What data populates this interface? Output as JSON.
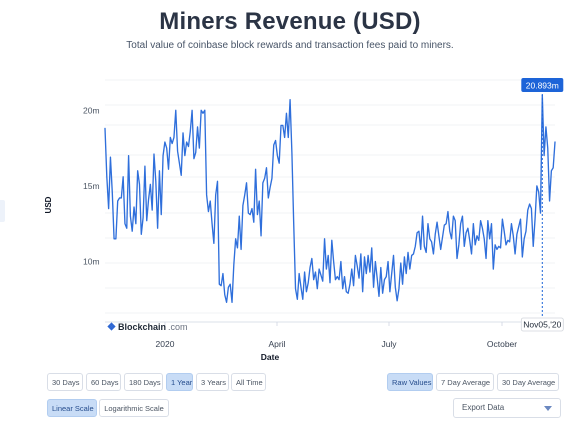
{
  "title": "Miners Revenue (USD)",
  "subtitle": "Total value of coinbase block rewards and transaction fees paid to miners.",
  "brand": {
    "name": "Blockchain",
    "domain": ".com"
  },
  "colors": {
    "line": "#2f6fdb",
    "grid": "#e5e7eb",
    "tooltip": "#1d64d8",
    "accent": "#c8dcf6"
  },
  "chart_data": {
    "type": "line",
    "ylabel": "USD",
    "xlabel": "Date",
    "yticks": [
      "10m",
      "15m",
      "20m"
    ],
    "xticks": [
      "2020",
      "April",
      "July",
      "October"
    ],
    "ylim": [
      6,
      22
    ],
    "crosshair": {
      "label": "20.893m",
      "date": "Nov05,'20"
    },
    "series": [
      {
        "values": [
          18.8,
          15.6,
          13.5,
          16.9,
          14.6,
          11.5,
          11.5,
          14.0,
          14.2,
          14.2,
          15.6,
          12.5,
          12.2,
          17.0,
          13.0,
          12.0,
          13.6,
          12.5,
          16.0,
          15.1,
          11.8,
          12.9,
          16.3,
          12.7,
          14.1,
          15.1,
          13.4,
          17.1,
          15.3,
          12.2,
          16.0,
          13.1,
          17.0,
          17.9,
          17.5,
          16.1,
          18.2,
          17.8,
          18.2,
          20.0,
          17.3,
          16.5,
          15.7,
          18.5,
          17.0,
          17.9,
          17.6,
          18.6,
          20.0,
          16.8,
          17.2,
          18.9,
          17.5,
          20.0,
          19.8,
          20.0,
          14.4,
          13.3,
          14.0,
          12.5,
          11.2,
          14.4,
          15.3,
          8.5,
          8.4,
          9.2,
          7.8,
          7.3,
          8.3,
          8.5,
          7.3,
          9.8,
          11.5,
          10.9,
          13.0,
          10.8,
          13.7,
          14.4,
          15.2,
          13.2,
          13.1,
          13.5,
          12.6,
          16.1,
          13.1,
          14.0,
          11.7,
          15.2,
          15.5,
          16.2,
          14.2,
          14.9,
          15.5,
          17.7,
          18.0,
          17.0,
          16.5,
          19.0,
          19.0,
          18.2,
          19.8,
          18.2,
          20.7,
          17.2,
          12.5,
          8.2,
          7.5,
          9.2,
          8.3,
          7.5,
          9.3,
          8.0,
          8.6,
          9.6,
          10.2,
          8.8,
          9.3,
          8.2,
          9.5,
          9.1,
          8.7,
          11.5,
          9.5,
          10.4,
          8.6,
          11.4,
          10.0,
          8.8,
          9.0,
          8.8,
          10.0,
          8.2,
          9.0,
          8.0,
          7.9,
          8.5,
          9.5,
          8.4,
          10.4,
          9.7,
          8.9,
          10.5,
          8.0,
          10.3,
          9.2,
          10.4,
          9.3,
          10.9,
          8.3,
          10.0,
          8.9,
          7.7,
          9.6,
          7.9,
          8.8,
          9.0,
          10.0,
          8.0,
          9.2,
          10.4,
          8.3,
          7.4,
          8.2,
          9.9,
          8.5,
          10.3,
          9.2,
          10.6,
          9.5,
          10.4,
          10.5,
          11.0,
          11.9,
          12.0,
          10.8,
          13.0,
          11.0,
          10.6,
          12.5,
          11.5,
          11.3,
          10.5,
          11.8,
          12.6,
          11.7,
          10.8,
          11.6,
          12.4,
          12.5,
          13.3,
          12.0,
          11.5,
          13.0,
          12.7,
          10.2,
          11.1,
          12.5,
          13.0,
          11.0,
          11.9,
          12.2,
          11.4,
          10.5,
          12.5,
          11.1,
          11.7,
          11.4,
          12.7,
          12.2,
          11.5,
          10.2,
          12.7,
          11.5,
          12.5,
          9.5,
          11.1,
          10.8,
          11.0,
          10.9,
          12.8,
          12.0,
          11.1,
          11.4,
          11.3,
          12.5,
          11.7,
          10.5,
          11.8,
          12.3,
          12.8,
          10.3,
          11.5,
          12.0,
          13.4,
          13.8,
          13.5,
          11.0,
          12.8,
          15.0,
          14.6,
          13.2,
          21.0,
          17.0,
          18.9,
          17.5,
          14.0,
          16.0,
          16.2,
          17.9
        ]
      }
    ]
  },
  "controls": {
    "range_buttons": [
      {
        "label": "30 Days",
        "active": false
      },
      {
        "label": "60 Days",
        "active": false
      },
      {
        "label": "180 Days",
        "active": false
      },
      {
        "label": "1 Year",
        "active": true
      },
      {
        "label": "3 Years",
        "active": false
      },
      {
        "label": "All Time",
        "active": false
      }
    ],
    "mode_buttons": [
      {
        "label": "Raw Values",
        "active": true
      },
      {
        "label": "7 Day Average",
        "active": false
      },
      {
        "label": "30 Day Average",
        "active": false
      }
    ],
    "scale_buttons": [
      {
        "label": "Linear Scale",
        "active": true
      },
      {
        "label": "Logarithmic Scale",
        "active": false
      }
    ],
    "export_label": "Export Data"
  }
}
